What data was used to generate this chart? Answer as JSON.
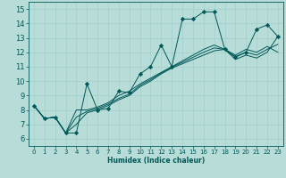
{
  "xlabel": "Humidex (Indice chaleur)",
  "xlim": [
    -0.5,
    23.5
  ],
  "ylim": [
    5.5,
    15.5
  ],
  "xticks": [
    0,
    1,
    2,
    3,
    4,
    5,
    6,
    7,
    8,
    9,
    10,
    11,
    12,
    13,
    14,
    15,
    16,
    17,
    18,
    19,
    20,
    21,
    22,
    23
  ],
  "yticks": [
    6,
    7,
    8,
    9,
    10,
    11,
    12,
    13,
    14,
    15
  ],
  "background_color": "#b8ddd8",
  "grid_color": "#9fcfca",
  "line_color": "#005858",
  "lines": [
    {
      "x": [
        0,
        1,
        2,
        3,
        4,
        5,
        6,
        7,
        8,
        9,
        10,
        11,
        12,
        13,
        14,
        15,
        16,
        17,
        18,
        19,
        20,
        21,
        22,
        23
      ],
      "y": [
        8.3,
        7.4,
        7.5,
        6.4,
        6.4,
        9.8,
        8.0,
        8.1,
        9.3,
        9.2,
        10.5,
        11.0,
        12.5,
        11.0,
        14.3,
        14.3,
        14.8,
        14.8,
        12.2,
        11.7,
        12.0,
        13.6,
        13.9,
        13.1
      ],
      "marker": "D",
      "marker_size": 2.2
    },
    {
      "x": [
        0,
        1,
        2,
        3,
        4,
        5,
        6,
        7,
        8,
        9,
        10,
        11,
        12,
        13,
        14,
        15,
        16,
        17,
        18,
        19,
        20,
        21,
        22,
        23
      ],
      "y": [
        8.3,
        7.4,
        7.5,
        6.4,
        8.0,
        8.0,
        8.2,
        8.5,
        9.0,
        9.3,
        9.8,
        10.2,
        10.6,
        11.0,
        11.4,
        11.8,
        12.2,
        12.5,
        12.2,
        11.8,
        12.2,
        12.0,
        12.4,
        12.0
      ],
      "marker": null,
      "marker_size": 0
    },
    {
      "x": [
        0,
        1,
        2,
        3,
        4,
        5,
        6,
        7,
        8,
        9,
        10,
        11,
        12,
        13,
        14,
        15,
        16,
        17,
        18,
        19,
        20,
        21,
        22,
        23
      ],
      "y": [
        8.3,
        7.4,
        7.5,
        6.4,
        7.0,
        7.8,
        8.0,
        8.3,
        8.7,
        9.0,
        9.6,
        10.0,
        10.5,
        10.9,
        11.2,
        11.5,
        11.8,
        12.1,
        12.2,
        11.5,
        11.8,
        11.6,
        12.0,
        13.1
      ],
      "marker": null,
      "marker_size": 0
    },
    {
      "x": [
        0,
        1,
        2,
        3,
        4,
        5,
        6,
        7,
        8,
        9,
        10,
        11,
        12,
        13,
        14,
        15,
        16,
        17,
        18,
        19,
        20,
        21,
        22,
        23
      ],
      "y": [
        8.3,
        7.4,
        7.5,
        6.4,
        7.5,
        7.9,
        8.1,
        8.4,
        8.8,
        9.1,
        9.7,
        10.1,
        10.55,
        10.95,
        11.3,
        11.65,
        12.0,
        12.3,
        12.2,
        11.65,
        12.0,
        11.8,
        12.2,
        12.55
      ],
      "marker": null,
      "marker_size": 0
    }
  ]
}
